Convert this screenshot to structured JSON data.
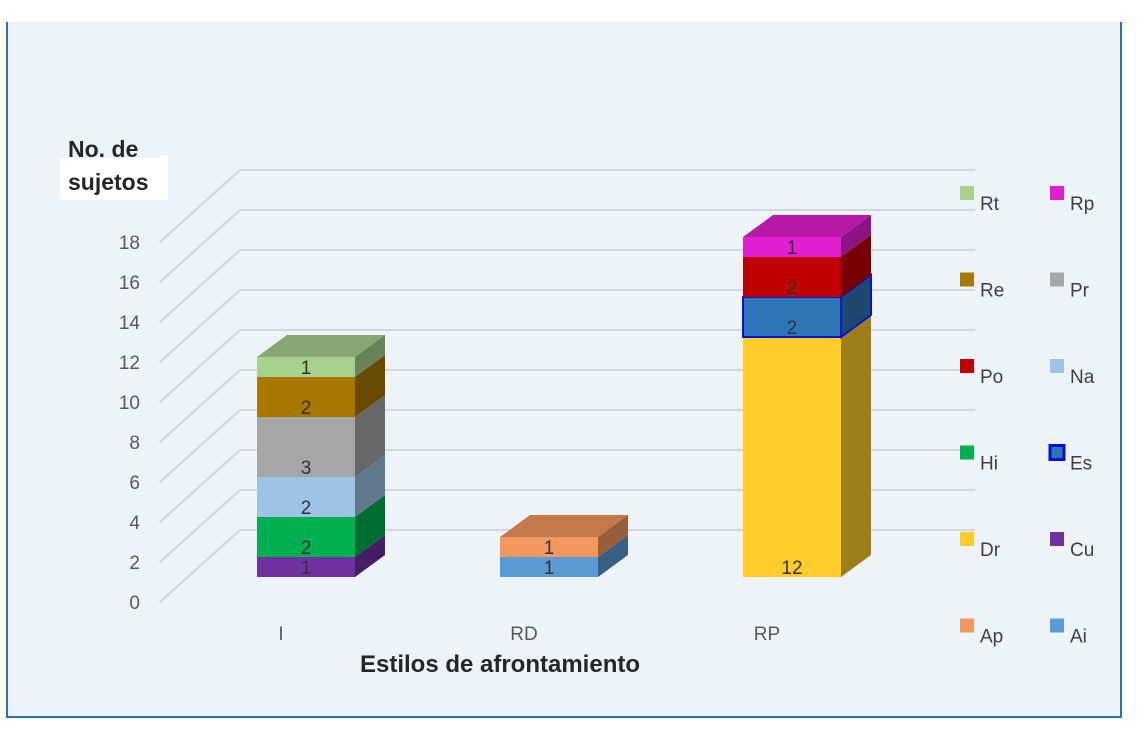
{
  "chart_data": {
    "type": "bar",
    "stacked": true,
    "three_d": true,
    "title": "",
    "ylabel": "No. de sujetos",
    "xlabel": "Estilos de afrontamiento",
    "ylim": [
      0,
      18
    ],
    "yticks": [
      0,
      2,
      4,
      6,
      8,
      10,
      12,
      14,
      16,
      18
    ],
    "categories": [
      "I",
      "RD",
      "RP"
    ],
    "grid": true,
    "legend_position": "right",
    "series": [
      {
        "name": "Ai",
        "color": "#5b9bd5",
        "values": [
          0,
          1,
          0
        ]
      },
      {
        "name": "Ap",
        "color": "#f4975f",
        "values": [
          0,
          1,
          0
        ]
      },
      {
        "name": "Cu",
        "color": "#7030a0",
        "values": [
          1,
          0,
          0
        ]
      },
      {
        "name": "Dr",
        "color": "#ffcc29",
        "values": [
          0,
          0,
          12
        ]
      },
      {
        "name": "Es",
        "color": "#2e75b6",
        "values": [
          0,
          0,
          2
        ],
        "border": "#0a10d8"
      },
      {
        "name": "Hi",
        "color": "#00b050",
        "values": [
          2,
          0,
          0
        ]
      },
      {
        "name": "Na",
        "color": "#9dc3e6",
        "values": [
          2,
          0,
          0
        ]
      },
      {
        "name": "Po",
        "color": "#c00000",
        "values": [
          0,
          0,
          2
        ]
      },
      {
        "name": "Pr",
        "color": "#a6a6a6",
        "values": [
          3,
          0,
          0
        ]
      },
      {
        "name": "Re",
        "color": "#a87800",
        "values": [
          2,
          0,
          0
        ]
      },
      {
        "name": "Rp",
        "color": "#e21fd0",
        "values": [
          0,
          0,
          1
        ]
      },
      {
        "name": "Rt",
        "color": "#a9d18e",
        "values": [
          1,
          0,
          0
        ]
      }
    ],
    "legend_order": [
      "Rt",
      "Rp",
      "Re",
      "Pr",
      "Po",
      "Na",
      "Hi",
      "Es",
      "Dr",
      "Cu",
      "Ap",
      "Ai"
    ]
  },
  "labels": {
    "ylabel_line1": "No. de",
    "ylabel_line2": "sujetos"
  }
}
